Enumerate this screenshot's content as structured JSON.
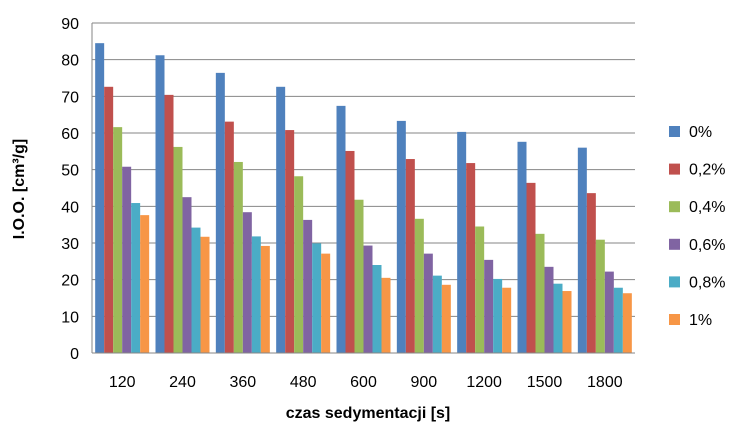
{
  "chart_data": {
    "type": "bar",
    "title": "",
    "xlabel": "czas sedymentacji [s]",
    "ylabel": "I.O.O. [cm³/g]",
    "ylim": [
      0,
      90
    ],
    "yticks": [
      0,
      10,
      20,
      30,
      40,
      50,
      60,
      70,
      80,
      90
    ],
    "grid": true,
    "legend_position": "right",
    "categories": [
      "120",
      "240",
      "360",
      "480",
      "600",
      "900",
      "1200",
      "1500",
      "1800"
    ],
    "series": [
      {
        "name": "0%",
        "color": "#4F81BD",
        "values": [
          84.5,
          81.2,
          76.4,
          72.6,
          67.4,
          63.3,
          60.3,
          57.6,
          56.0
        ]
      },
      {
        "name": "0,2%",
        "color": "#C0504D",
        "values": [
          72.6,
          70.4,
          63.1,
          60.8,
          55.1,
          52.9,
          51.8,
          46.4,
          43.6
        ]
      },
      {
        "name": "0,4%",
        "color": "#9BBB59",
        "values": [
          61.6,
          56.2,
          52.1,
          48.2,
          41.8,
          36.6,
          34.5,
          32.5,
          30.9
        ]
      },
      {
        "name": "0,6%",
        "color": "#8064A2",
        "values": [
          50.8,
          42.5,
          38.4,
          36.3,
          29.3,
          27.1,
          25.4,
          23.5,
          22.2
        ]
      },
      {
        "name": "0,8%",
        "color": "#4BACC6",
        "values": [
          40.9,
          34.2,
          31.8,
          29.9,
          24.0,
          21.1,
          20.2,
          18.9,
          17.8
        ]
      },
      {
        "name": "1%",
        "color": "#F79646",
        "values": [
          37.6,
          31.7,
          29.2,
          27.1,
          20.5,
          18.6,
          17.8,
          16.9,
          16.3
        ]
      }
    ]
  }
}
